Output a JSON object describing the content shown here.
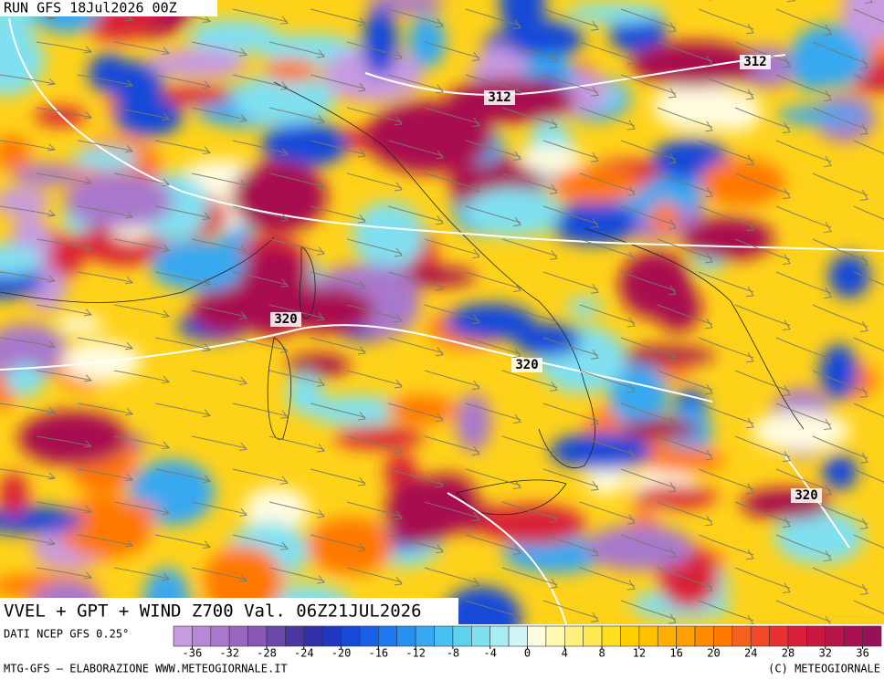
{
  "header": {
    "run": "RUN GFS 18Jul2026 00Z"
  },
  "title": "VVEL + GPT + WIND Z700 Val. 06Z21JUL2026",
  "source": "DATI NCEP GFS 0.25°",
  "footer": {
    "left": "MTG-GFS – ELABORAZIONE WWW.METEOGIORNALE.IT",
    "right": "(C) METEOGIORNALE"
  },
  "contour_labels": [
    312,
    312,
    320,
    320,
    320
  ],
  "colorbar": {
    "ticks": [
      -36,
      -32,
      -28,
      -24,
      -20,
      -16,
      -12,
      -8,
      -4,
      0,
      4,
      8,
      12,
      16,
      20,
      24,
      28,
      32,
      36
    ],
    "range": [
      -38,
      38
    ],
    "colors": [
      "#c89ae0",
      "#b888d8",
      "#a878cc",
      "#9868c0",
      "#8858b4",
      "#6a48a8",
      "#4a38a0",
      "#3030a8",
      "#2038c0",
      "#1848d8",
      "#1860e8",
      "#2078f0",
      "#2890f0",
      "#38a8f0",
      "#48c0f0",
      "#60d0f0",
      "#80e0f0",
      "#a8ecf4",
      "#d0f6f8",
      "#fffce0",
      "#fff8b0",
      "#fff080",
      "#ffe850",
      "#ffe020",
      "#ffd000",
      "#ffc000",
      "#ffb000",
      "#ffa000",
      "#ff8c00",
      "#ff7800",
      "#f86020",
      "#f04828",
      "#e83030",
      "#d82038",
      "#c81840",
      "#b81448",
      "#a81050",
      "#981058"
    ]
  }
}
